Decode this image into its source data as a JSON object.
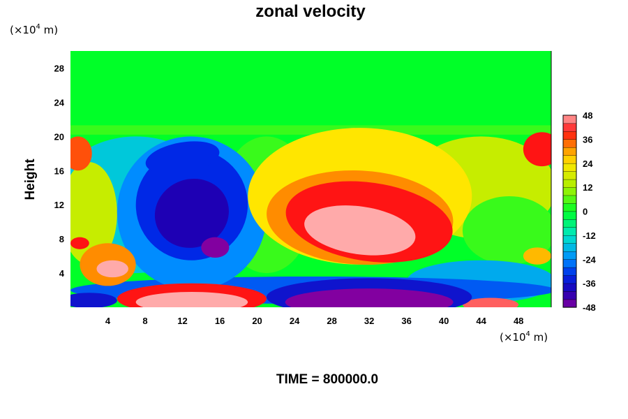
{
  "chart_data": {
    "type": "heatmap",
    "title": "zonal velocity",
    "ylabel": "Height",
    "xunit": "(×10",
    "yunit": "(×10",
    "unit_exp": "4",
    "unit_tail": " m)",
    "footer": "TIME = 800000.0",
    "xlim": [
      0,
      51.5
    ],
    "ylim": [
      0,
      30
    ],
    "x_ticks": [
      4,
      8,
      12,
      16,
      20,
      24,
      28,
      32,
      36,
      40,
      44,
      48
    ],
    "y_ticks": [
      4,
      8,
      12,
      16,
      20,
      24,
      28
    ],
    "colorbar": {
      "min": -48,
      "max": 48,
      "ticks": [
        48,
        36,
        24,
        12,
        0,
        -12,
        -24,
        -36,
        -48
      ],
      "step": 4
    },
    "background_value": 0,
    "features": [
      {
        "kind": "jet",
        "x": 31,
        "y": 9,
        "value": 52
      },
      {
        "kind": "jet",
        "x": 13,
        "y": 1,
        "value": 54
      },
      {
        "kind": "jet",
        "x": 45,
        "y": 0.5,
        "value": 42
      },
      {
        "kind": "jet",
        "x": 4.5,
        "y": 4.5,
        "value": 46
      },
      {
        "kind": "jet",
        "x": 1,
        "y": 7.5,
        "value": 36
      },
      {
        "kind": "jet",
        "x": 0.8,
        "y": 18,
        "value": 34
      },
      {
        "kind": "jet",
        "x": 50.5,
        "y": 18.5,
        "value": 38
      },
      {
        "kind": "jet",
        "x": 50,
        "y": 6,
        "value": 28
      },
      {
        "kind": "trough",
        "x": 13,
        "y": 11,
        "value": -46
      },
      {
        "kind": "trough",
        "x": 15.5,
        "y": 7,
        "value": -50
      },
      {
        "kind": "trough",
        "x": 32,
        "y": 1,
        "value": -56
      },
      {
        "kind": "trough",
        "x": 2,
        "y": 1,
        "value": -38
      }
    ]
  }
}
